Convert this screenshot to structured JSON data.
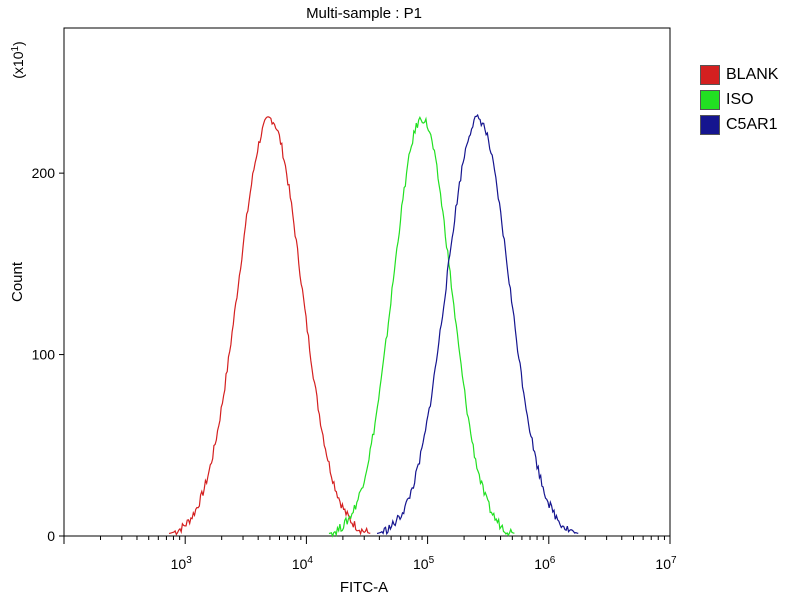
{
  "chart_data": {
    "type": "line",
    "title": "Multi-sample : P1",
    "xlabel": "FITC-A",
    "ylabel": "Count",
    "y_multiplier": "(x10",
    "y_multiplier_exp": "1",
    "y_multiplier_close": ")",
    "x_scale": "log",
    "xlim": [
      100,
      10000000
    ],
    "ylim": [
      0,
      280
    ],
    "x_ticks": [
      {
        "base": "10",
        "exp": "3",
        "value": 1000
      },
      {
        "base": "10",
        "exp": "4",
        "value": 10000
      },
      {
        "base": "10",
        "exp": "5",
        "value": 100000
      },
      {
        "base": "10",
        "exp": "6",
        "value": 1000000
      },
      {
        "base": "10",
        "exp": "7",
        "value": 10000000
      }
    ],
    "y_ticks": [
      0,
      100,
      200
    ],
    "legend_position": "right",
    "series": [
      {
        "name": "BLANK",
        "color": "#d42020",
        "center": 5000,
        "peak": 230,
        "width": 0.26
      },
      {
        "name": "ISO",
        "color": "#22e022",
        "center": 90000,
        "peak": 230,
        "width": 0.24
      },
      {
        "name": "C5AR1",
        "color": "#15158f",
        "center": 260000,
        "peak": 230,
        "width": 0.26
      }
    ]
  }
}
